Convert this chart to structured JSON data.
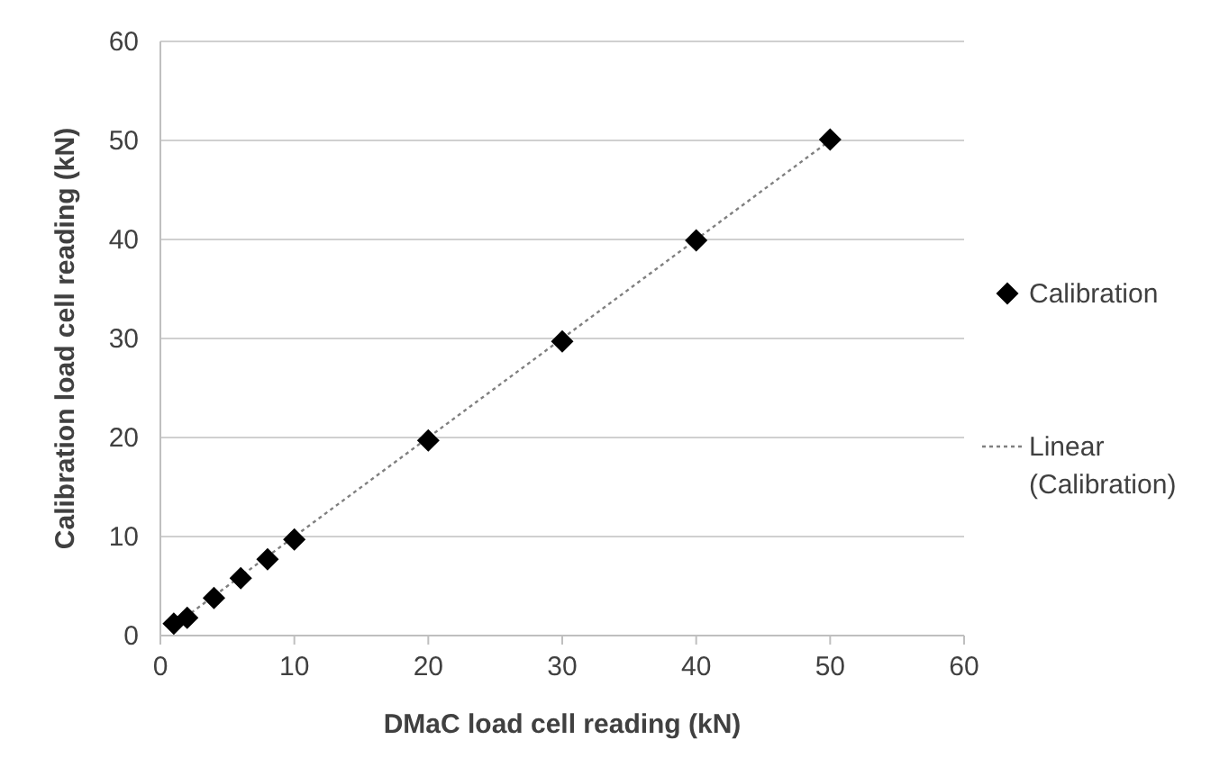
{
  "chart_data": {
    "type": "scatter",
    "xlabel": "DMaC load cell reading (kN)",
    "ylabel": "Calibration load cell reading (kN)",
    "xlim": [
      0,
      60
    ],
    "ylim": [
      0,
      60
    ],
    "xticks": [
      0,
      10,
      20,
      30,
      40,
      50,
      60
    ],
    "yticks": [
      0,
      10,
      20,
      30,
      40,
      50,
      60
    ],
    "grid": "y",
    "legend": "right",
    "series": [
      {
        "name": "Calibration",
        "marker": "diamond",
        "color": "#000000",
        "x": [
          1,
          2,
          4,
          6,
          8,
          10,
          20,
          30,
          40,
          50
        ],
        "values": [
          1.2,
          1.8,
          3.8,
          5.8,
          7.7,
          9.7,
          19.7,
          29.7,
          39.9,
          50.1
        ]
      },
      {
        "name": "Linear\n(Calibration)",
        "type": "line",
        "line_style": "dotted",
        "color": "#808080",
        "x": [
          1,
          50
        ],
        "values": [
          1.0,
          50.0
        ]
      }
    ]
  }
}
